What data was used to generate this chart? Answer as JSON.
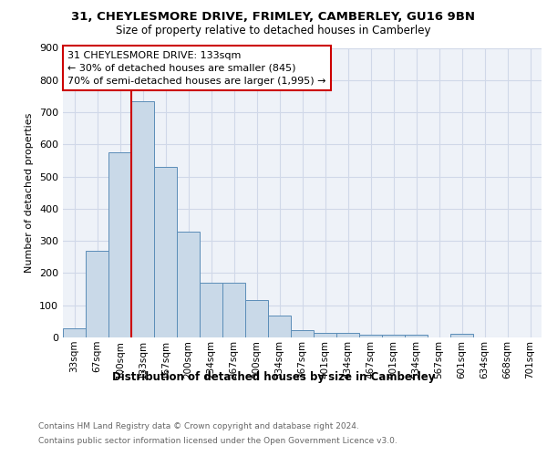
{
  "title": "31, CHEYLESMORE DRIVE, FRIMLEY, CAMBERLEY, GU16 9BN",
  "subtitle": "Size of property relative to detached houses in Camberley",
  "xlabel": "Distribution of detached houses by size in Camberley",
  "ylabel": "Number of detached properties",
  "footnote1": "Contains HM Land Registry data © Crown copyright and database right 2024.",
  "footnote2": "Contains public sector information licensed under the Open Government Licence v3.0.",
  "bin_labels": [
    "33sqm",
    "67sqm",
    "100sqm",
    "133sqm",
    "167sqm",
    "200sqm",
    "234sqm",
    "267sqm",
    "300sqm",
    "334sqm",
    "367sqm",
    "401sqm",
    "434sqm",
    "467sqm",
    "501sqm",
    "534sqm",
    "567sqm",
    "601sqm",
    "634sqm",
    "668sqm",
    "701sqm"
  ],
  "bar_values": [
    27,
    270,
    575,
    735,
    530,
    330,
    170,
    170,
    115,
    68,
    22,
    14,
    14,
    8,
    9,
    9,
    0,
    10,
    0,
    0,
    0
  ],
  "bar_color": "#c9d9e8",
  "bar_edge_color": "#5b8db8",
  "property_line_x": 3,
  "property_line_label": "31 CHEYLESMORE DRIVE: 133sqm",
  "annotation_line1": "← 30% of detached houses are smaller (845)",
  "annotation_line2": "70% of semi-detached houses are larger (1,995) →",
  "annotation_box_color": "#ffffff",
  "annotation_box_edge_color": "#cc0000",
  "property_line_color": "#cc0000",
  "ylim": [
    0,
    900
  ],
  "yticks": [
    0,
    100,
    200,
    300,
    400,
    500,
    600,
    700,
    800,
    900
  ],
  "grid_color": "#d0d8e8",
  "background_color": "#eef2f8"
}
